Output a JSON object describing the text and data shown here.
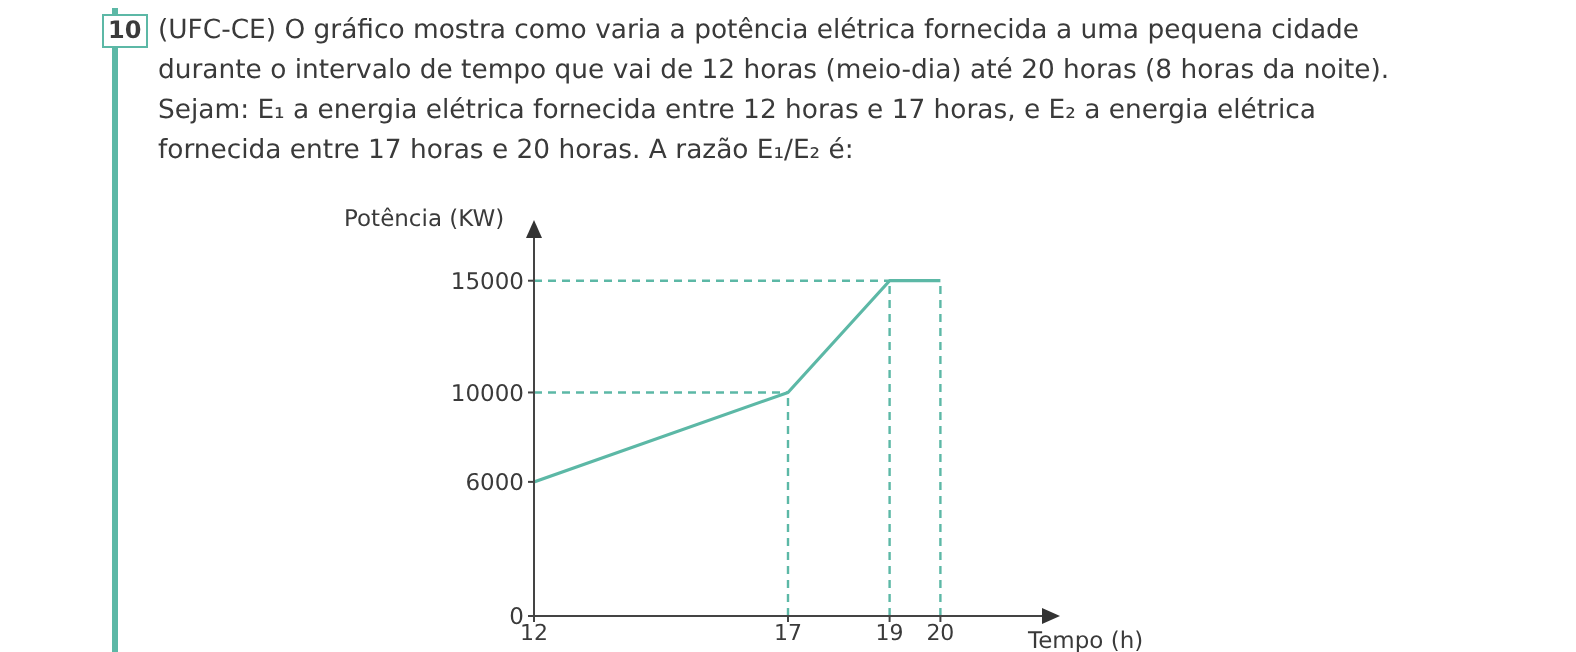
{
  "chart_data": {
    "type": "line",
    "title": "(UFC-CE) O gráfico mostra como varia a potência elétrica fornecida a uma pequena cidade durante o intervalo de tempo que vai de 12 horas (meio-dia) até 20 horas (8 horas da noite). Sejam: E₁ a energia elétrica fornecida entre 12 horas e 17 horas, e E₂ a energia elétrica fornecida entre 17 horas e 20 horas. A razão E₁/E₂ é:",
    "annotations": [
      "10"
    ],
    "xlabel": "Tempo (h)",
    "ylabel": "Potência (KW)",
    "x": [
      12,
      17,
      19,
      20
    ],
    "series": [
      {
        "color": "#5cb8a6",
        "values": [
          6000,
          10000,
          15000,
          15000
        ]
      }
    ],
    "xlim": [
      12,
      22
    ],
    "xticks": [
      12,
      17,
      19,
      20
    ],
    "ylim": [
      0,
      17000
    ],
    "yticks": [
      0,
      6000,
      10000,
      15000
    ],
    "ref_lines": [
      {
        "axis": "y",
        "value": 10000,
        "color": "#5cb8a6",
        "line_style": "dashed"
      },
      {
        "axis": "y",
        "value": 15000,
        "color": "#5cb8a6",
        "line_style": "dashed"
      },
      {
        "axis": "x",
        "value": 17,
        "color": "#5cb8a6",
        "line_style": "dashed"
      },
      {
        "axis": "x",
        "value": 19,
        "color": "#5cb8a6",
        "line_style": "dashed"
      },
      {
        "axis": "x",
        "value": 20,
        "color": "#5cb8a6",
        "line_style": "dashed"
      }
    ],
    "grid": false,
    "marker": "none",
    "line_style": "solid"
  }
}
